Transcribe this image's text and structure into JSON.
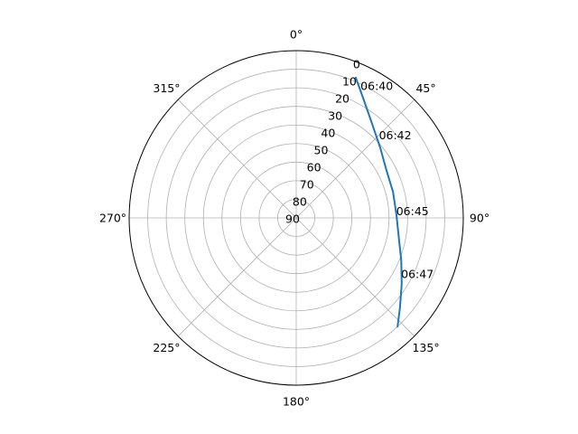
{
  "chart_data": {
    "type": "line",
    "projection": "polar",
    "theta_zero": "N",
    "theta_direction": "clockwise",
    "r_direction": "inverted",
    "rlim": [
      90,
      0
    ],
    "grid": true,
    "angle_ticks": [
      0,
      45,
      90,
      135,
      180,
      225,
      270,
      315
    ],
    "angle_tick_labels": [
      "0°",
      "45°",
      "90°",
      "135°",
      "180°",
      "225°",
      "270°",
      "315°"
    ],
    "r_ticks": [
      0,
      10,
      20,
      30,
      40,
      50,
      60,
      70,
      80,
      90
    ],
    "r_tick_labels": [
      "0",
      "10",
      "20",
      "30",
      "40",
      "50",
      "60",
      "70",
      "80",
      "90"
    ],
    "series": [
      {
        "color": "#1f77b4",
        "points": [
          {
            "azimuth": 23,
            "elevation": 8
          },
          {
            "azimuth": 30,
            "elevation": 17
          },
          {
            "azimuth": 39,
            "elevation": 25
          },
          {
            "azimuth": 50,
            "elevation": 31
          },
          {
            "azimuth": 62,
            "elevation": 35
          },
          {
            "azimuth": 75,
            "elevation": 36
          },
          {
            "azimuth": 88,
            "elevation": 36
          },
          {
            "azimuth": 100,
            "elevation": 34
          },
          {
            "azimuth": 112,
            "elevation": 29
          },
          {
            "azimuth": 122,
            "elevation": 23
          },
          {
            "azimuth": 131,
            "elevation": 16
          },
          {
            "azimuth": 137,
            "elevation": 10
          }
        ]
      }
    ],
    "annotations": [
      {
        "text": "06:40",
        "azimuth": 26,
        "elevation": 11
      },
      {
        "text": "06:42",
        "azimuth": 45,
        "elevation": 27
      },
      {
        "text": "06:45",
        "azimuth": 86,
        "elevation": 36
      },
      {
        "text": "06:47",
        "azimuth": 118,
        "elevation": 26
      }
    ]
  }
}
